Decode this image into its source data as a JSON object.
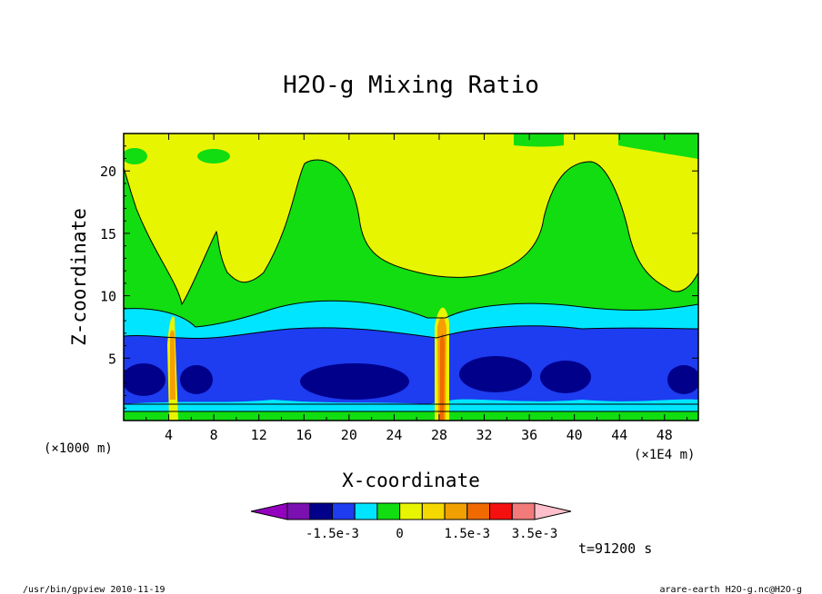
{
  "chart_data": {
    "type": "heatmap",
    "title": "H2O-g Mixing Ratio",
    "xlabel": "X-coordinate",
    "ylabel": "Z-coordinate",
    "x_unit_left": "(×1000 m)",
    "x_unit_right": "(×1E4 m)",
    "xticks": [
      "4",
      "8",
      "12",
      "16",
      "20",
      "24",
      "28",
      "32",
      "36",
      "40",
      "44",
      "48"
    ],
    "yticks": [
      "5",
      "10",
      "15",
      "20"
    ],
    "xlim": [
      0,
      51
    ],
    "ylim": [
      0,
      23
    ],
    "time_label": "t=91200 s",
    "colorbar": {
      "colors": [
        "#9400bf",
        "#7a10b0",
        "#00008b",
        "#1e3cf0",
        "#00e5ff",
        "#11dd11",
        "#e8f500",
        "#f5d800",
        "#f0a000",
        "#f06a00",
        "#f51010",
        "#f27a7a",
        "#ffc0cb"
      ],
      "labels": [
        "-1.5e-3",
        "0",
        "1.5e-3",
        "3.5e-3"
      ]
    },
    "bands_by_height": [
      {
        "z": [
          0.0,
          0.5
        ],
        "color": "green"
      },
      {
        "z": [
          0.5,
          1.7
        ],
        "color": "cyan"
      },
      {
        "z": [
          1.7,
          6.5
        ],
        "color": "blue"
      },
      {
        "z": [
          6.5,
          9.0
        ],
        "color": "cyan"
      },
      {
        "z": [
          9.0,
          18.0
        ],
        "color": "green"
      },
      {
        "z": [
          18.0,
          23.0
        ],
        "color": "yellow"
      }
    ]
  },
  "footer": {
    "left": "/usr/bin/gpview  2010-11-19",
    "right": "arare-earth_H2O-g.nc@H2O-g"
  }
}
